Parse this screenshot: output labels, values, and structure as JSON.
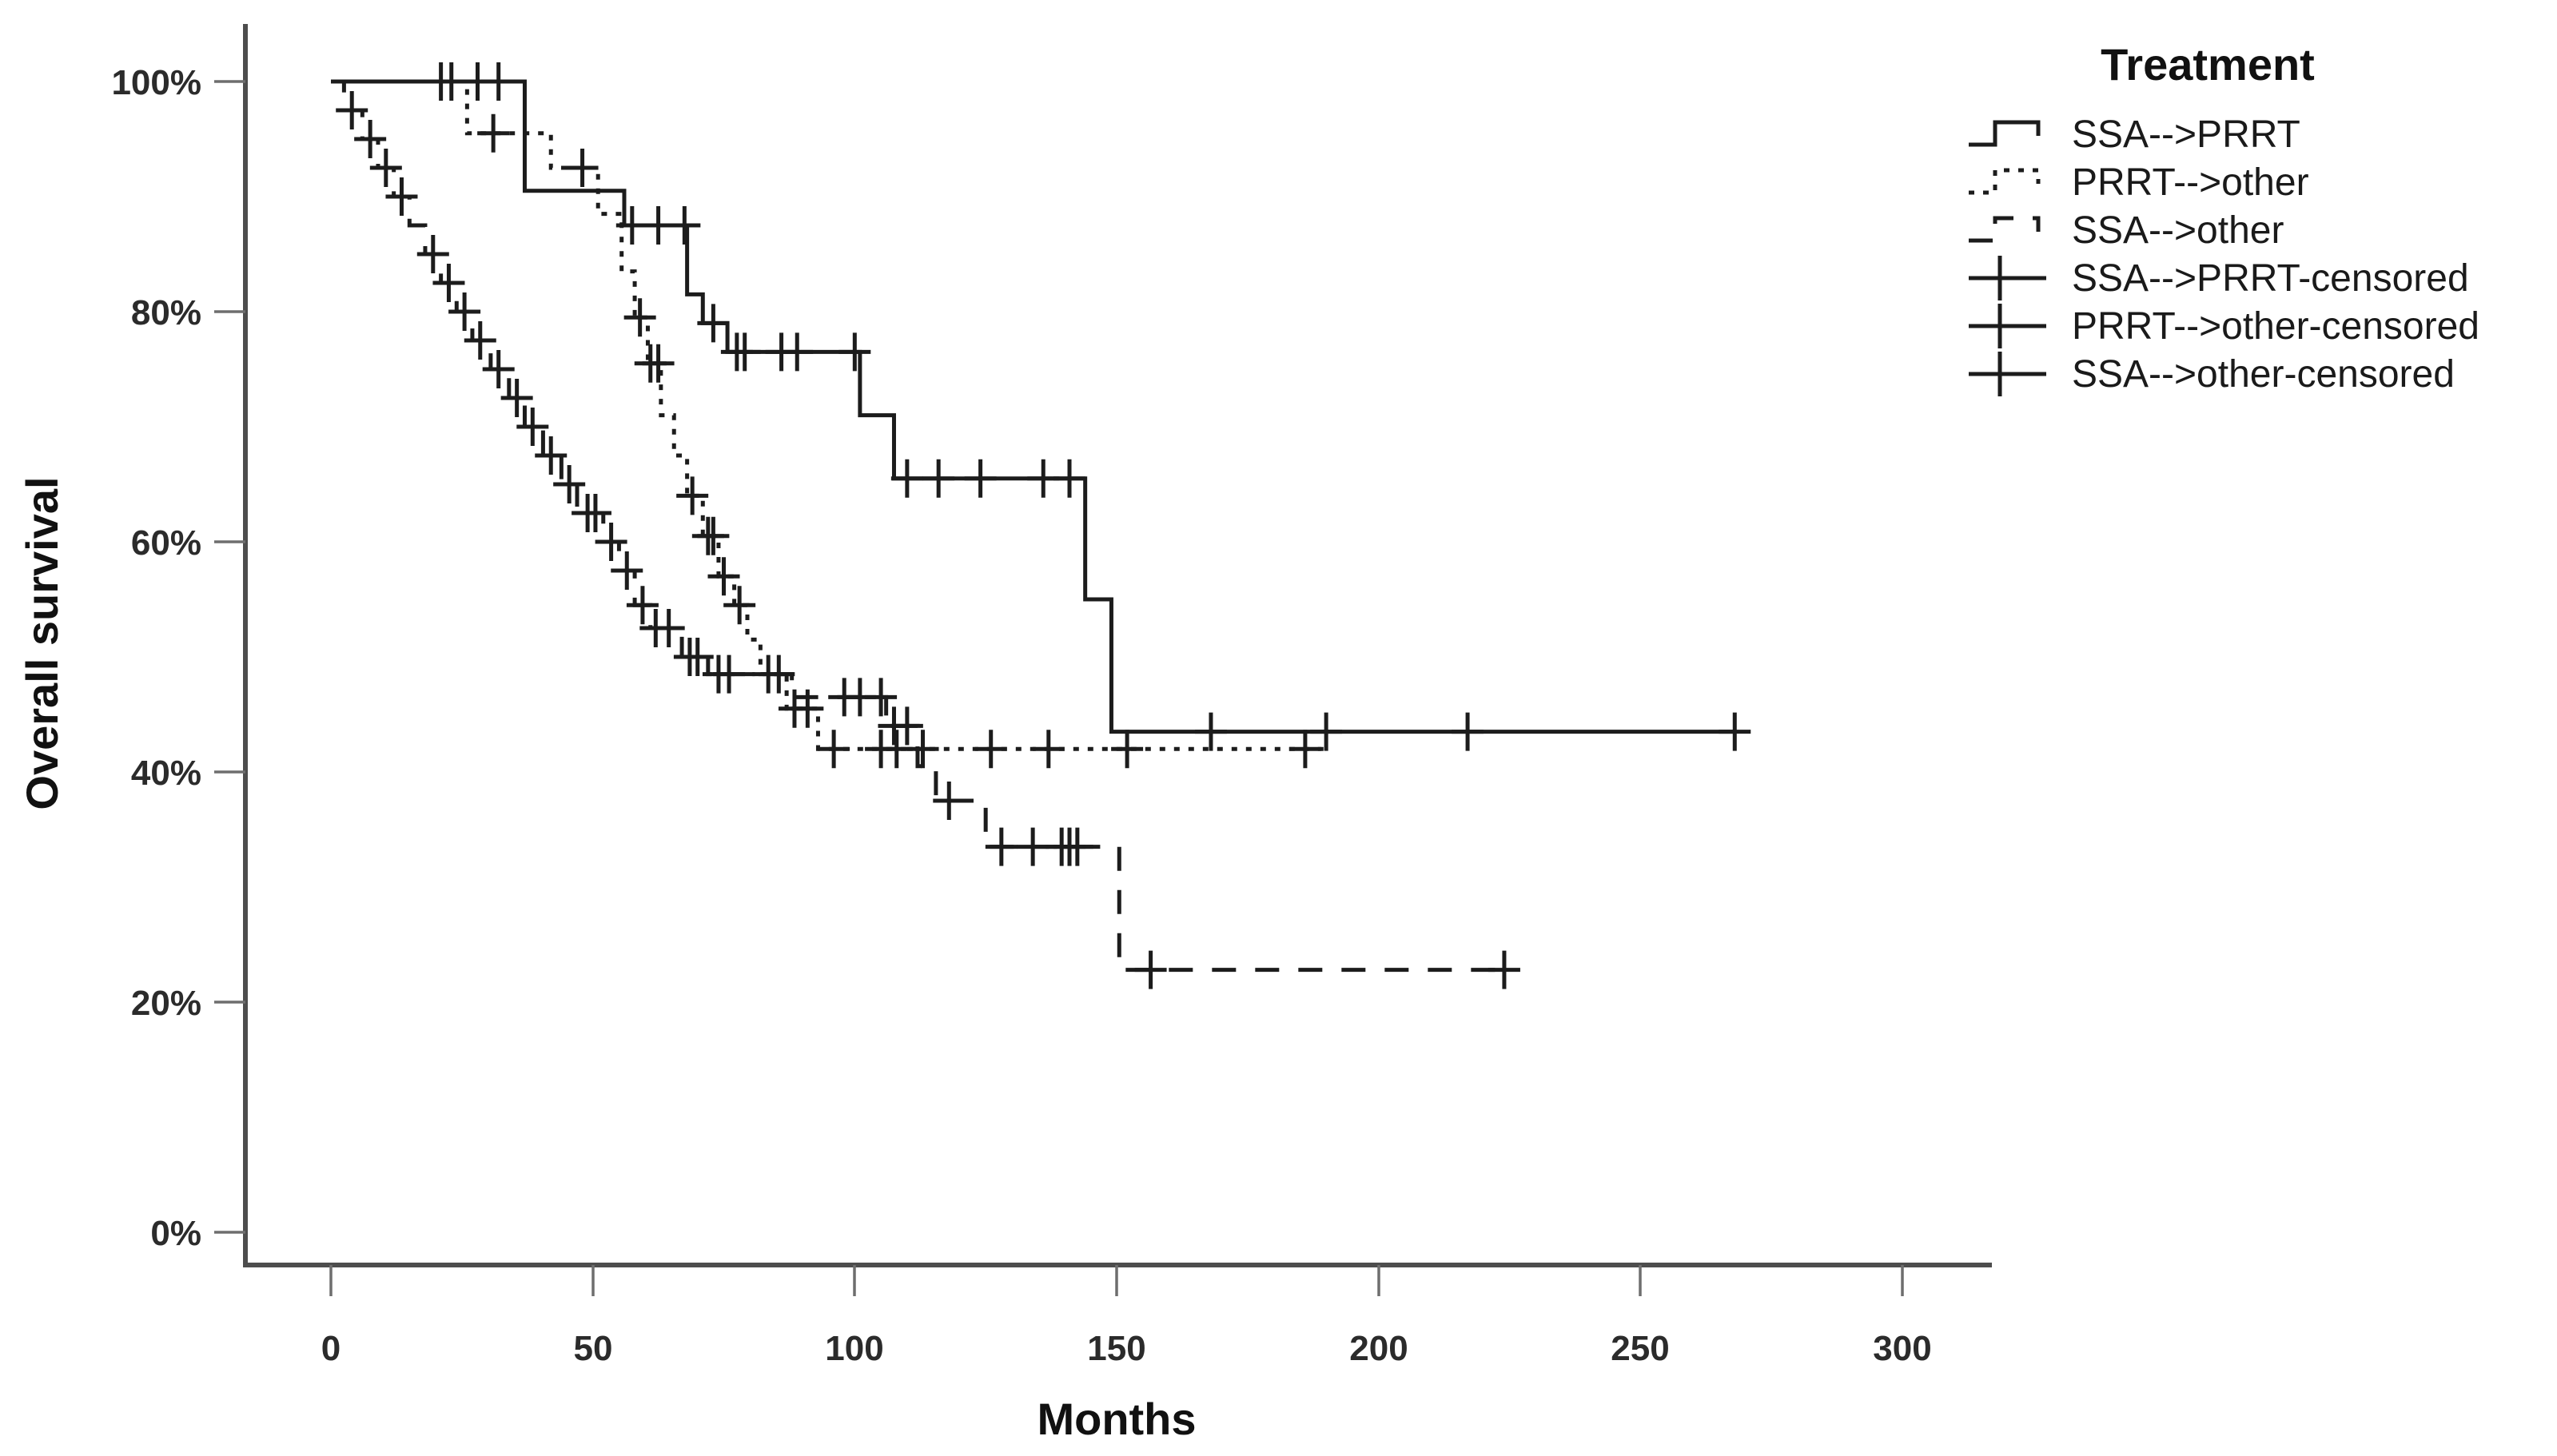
{
  "page": {
    "background": "#ffffff",
    "line_color": "#1c1c1c",
    "axis_color": "#4d4d4d"
  },
  "chart_data": {
    "type": "line",
    "subtype": "kaplan-meier-step",
    "title": "",
    "ylabel": "Overall survival",
    "xlabel": "Months",
    "legend_title": "Treatment",
    "legend_position": "top-right",
    "grid": false,
    "xlim": [
      0,
      300
    ],
    "ylim": [
      0,
      100
    ],
    "x_ticks": [
      {
        "value": 0,
        "label": "0"
      },
      {
        "value": 50,
        "label": "50"
      },
      {
        "value": 100,
        "label": "100"
      },
      {
        "value": 150,
        "label": "150"
      },
      {
        "value": 200,
        "label": "200"
      },
      {
        "value": 250,
        "label": "250"
      },
      {
        "value": 300,
        "label": "300"
      }
    ],
    "y_ticks": [
      {
        "value": 100,
        "label": "100%"
      },
      {
        "value": 80,
        "label": "80%"
      },
      {
        "value": 60,
        "label": "60%"
      },
      {
        "value": 40,
        "label": "40%"
      },
      {
        "value": 20,
        "label": "20%"
      },
      {
        "value": 0,
        "label": "0%"
      }
    ],
    "legend_entries": [
      "SSA-->PRRT",
      "PRRT-->other",
      "SSA-->other",
      "SSA-->PRRT-censored",
      "PRRT-->other-censored",
      "SSA-->other-censored"
    ],
    "series": [
      {
        "name": "SSA-->PRRT",
        "style": "solid",
        "color": "#1c1c1c",
        "steps": [
          [
            0,
            100
          ],
          [
            37,
            90.5
          ],
          [
            56,
            87.5
          ],
          [
            68,
            81.5
          ],
          [
            71,
            79
          ],
          [
            75.7,
            76.5
          ],
          [
            101,
            71
          ],
          [
            107.5,
            65.5
          ],
          [
            144,
            55
          ],
          [
            149,
            43.5
          ]
        ],
        "end_month": 268,
        "censored": [
          [
            21,
            100
          ],
          [
            23,
            100
          ],
          [
            28,
            100
          ],
          [
            32,
            100
          ],
          [
            57.5,
            87.5
          ],
          [
            62.5,
            87.5
          ],
          [
            67.5,
            87.5
          ],
          [
            73,
            79
          ],
          [
            77.5,
            76.5
          ],
          [
            79,
            76.5
          ],
          [
            86,
            76.5
          ],
          [
            89,
            76.5
          ],
          [
            100,
            76.5
          ],
          [
            110,
            65.5
          ],
          [
            116,
            65.5
          ],
          [
            124,
            65.5
          ],
          [
            136,
            65.5
          ],
          [
            141,
            65.5
          ],
          [
            168,
            43.5
          ],
          [
            190,
            43.5
          ],
          [
            217,
            43.5
          ],
          [
            268,
            43.5
          ]
        ]
      },
      {
        "name": "PRRT-->other",
        "style": "dotted",
        "color": "#1c1c1c",
        "steps": [
          [
            0,
            100
          ],
          [
            26,
            95.5
          ],
          [
            42,
            92.5
          ],
          [
            51,
            88.5
          ],
          [
            55.5,
            83.5
          ],
          [
            58,
            79.5
          ],
          [
            60.5,
            75.5
          ],
          [
            63,
            71
          ],
          [
            65.5,
            67.5
          ],
          [
            68,
            64
          ],
          [
            71,
            60.5
          ],
          [
            74,
            57
          ],
          [
            77,
            54.5
          ],
          [
            79.5,
            51.5
          ],
          [
            82,
            48.5
          ],
          [
            87,
            45.5
          ],
          [
            93,
            42
          ]
        ],
        "end_month": 190,
        "censored": [
          [
            31,
            95.5
          ],
          [
            48,
            92.5
          ],
          [
            59,
            79.5
          ],
          [
            61,
            75.5
          ],
          [
            62.5,
            75.5
          ],
          [
            69,
            64
          ],
          [
            72,
            60.5
          ],
          [
            73,
            60.5
          ],
          [
            75,
            57
          ],
          [
            78,
            54.5
          ],
          [
            83.5,
            48.5
          ],
          [
            85.5,
            48.5
          ],
          [
            88.5,
            45.5
          ],
          [
            91,
            45.5
          ],
          [
            96,
            42
          ],
          [
            105,
            42
          ],
          [
            108,
            42
          ],
          [
            113,
            42
          ],
          [
            126,
            42
          ],
          [
            137,
            42
          ],
          [
            152,
            42
          ],
          [
            186,
            42
          ]
        ]
      },
      {
        "name": "SSA-->other",
        "style": "dashed",
        "color": "#1c1c1c",
        "steps": [
          [
            0,
            100
          ],
          [
            2.5,
            97.5
          ],
          [
            6,
            95
          ],
          [
            9,
            92.5
          ],
          [
            12,
            90
          ],
          [
            15,
            87.5
          ],
          [
            18,
            85
          ],
          [
            21,
            82.5
          ],
          [
            24,
            80
          ],
          [
            27,
            77.5
          ],
          [
            30.5,
            75
          ],
          [
            34,
            72.5
          ],
          [
            37,
            70
          ],
          [
            40.5,
            67.5
          ],
          [
            44,
            65
          ],
          [
            47,
            62.5
          ],
          [
            52,
            60
          ],
          [
            55,
            57.5
          ],
          [
            58,
            54.5
          ],
          [
            61,
            52.5
          ],
          [
            67,
            50
          ],
          [
            72,
            48.5
          ],
          [
            88,
            46.5
          ],
          [
            106,
            44
          ],
          [
            112,
            40.5
          ],
          [
            115.5,
            37.5
          ],
          [
            125,
            33.5
          ],
          [
            150.5,
            22.8
          ]
        ],
        "end_month": 224,
        "censored": [
          [
            4,
            97.5
          ],
          [
            7.5,
            95
          ],
          [
            10.5,
            92.5
          ],
          [
            13.5,
            90
          ],
          [
            19.5,
            85
          ],
          [
            22.5,
            82.5
          ],
          [
            25.5,
            80
          ],
          [
            28.5,
            77.5
          ],
          [
            32,
            75
          ],
          [
            35.5,
            72.5
          ],
          [
            38.5,
            70
          ],
          [
            42,
            67.5
          ],
          [
            45.5,
            65
          ],
          [
            49,
            62.5
          ],
          [
            50.5,
            62.5
          ],
          [
            53.5,
            60
          ],
          [
            56.5,
            57.5
          ],
          [
            59.5,
            54.5
          ],
          [
            62,
            52.5
          ],
          [
            64.5,
            52.5
          ],
          [
            68.5,
            50
          ],
          [
            70,
            50
          ],
          [
            74,
            48.5
          ],
          [
            76,
            48.5
          ],
          [
            98,
            46.5
          ],
          [
            101,
            46.5
          ],
          [
            105,
            46.5
          ],
          [
            107.5,
            44
          ],
          [
            110,
            44
          ],
          [
            118,
            37.5
          ],
          [
            128,
            33.5
          ],
          [
            134,
            33.5
          ],
          [
            139.5,
            33.5
          ],
          [
            141,
            33.5
          ],
          [
            142.5,
            33.5
          ],
          [
            156.5,
            22.8
          ],
          [
            224,
            22.8
          ]
        ]
      }
    ]
  }
}
